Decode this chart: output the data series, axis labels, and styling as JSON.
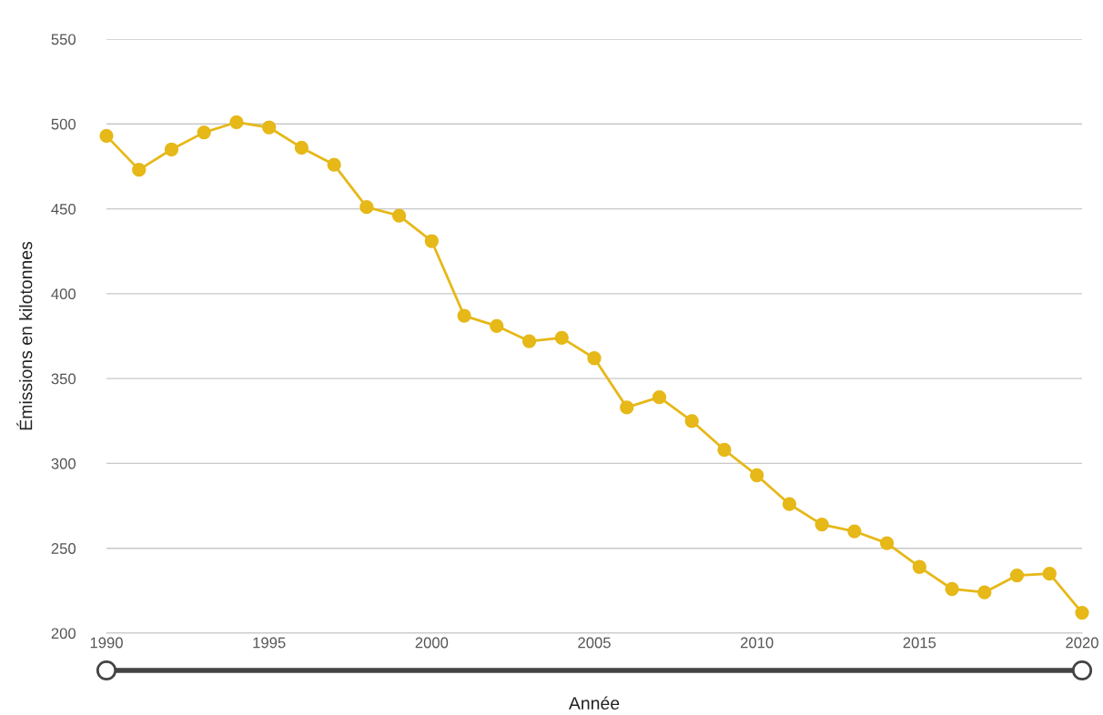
{
  "chart_data": {
    "type": "line",
    "xlabel": "Année",
    "ylabel": "Émissions en kilotonnes",
    "x": [
      1990,
      1991,
      1992,
      1993,
      1994,
      1995,
      1996,
      1997,
      1998,
      1999,
      2000,
      2001,
      2002,
      2003,
      2004,
      2005,
      2006,
      2007,
      2008,
      2009,
      2010,
      2011,
      2012,
      2013,
      2014,
      2015,
      2016,
      2017,
      2018,
      2019,
      2020
    ],
    "series": [
      {
        "color": "#e6b818",
        "values": [
          493,
          473,
          485,
          495,
          501,
          498,
          486,
          476,
          451,
          446,
          431,
          387,
          381,
          372,
          374,
          362,
          333,
          339,
          325,
          308,
          293,
          276,
          264,
          260,
          253,
          239,
          226,
          224,
          234,
          235,
          212
        ]
      }
    ],
    "xlim": [
      1990,
      2020
    ],
    "xticks": [
      1990,
      1995,
      2000,
      2005,
      2010,
      2015,
      2020
    ],
    "ylim": [
      200,
      550
    ],
    "yticks": [
      200,
      250,
      300,
      350,
      400,
      450,
      500,
      550
    ],
    "grid": "y",
    "marker": "circle",
    "line_style": "solid",
    "legend": false
  }
}
